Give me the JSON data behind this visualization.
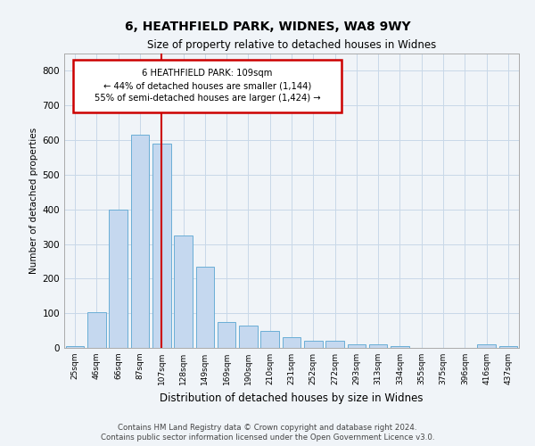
{
  "title1": "6, HEATHFIELD PARK, WIDNES, WA8 9WY",
  "title2": "Size of property relative to detached houses in Widnes",
  "xlabel": "Distribution of detached houses by size in Widnes",
  "ylabel": "Number of detached properties",
  "footnote1": "Contains HM Land Registry data © Crown copyright and database right 2024.",
  "footnote2": "Contains public sector information licensed under the Open Government Licence v3.0.",
  "annotation_line1": "6 HEATHFIELD PARK: 109sqm",
  "annotation_line2": "← 44% of detached houses are smaller (1,144)",
  "annotation_line3": "55% of semi-detached houses are larger (1,424) →",
  "bar_labels": [
    "25sqm",
    "46sqm",
    "66sqm",
    "87sqm",
    "107sqm",
    "128sqm",
    "149sqm",
    "169sqm",
    "190sqm",
    "210sqm",
    "231sqm",
    "252sqm",
    "272sqm",
    "293sqm",
    "313sqm",
    "334sqm",
    "355sqm",
    "375sqm",
    "396sqm",
    "416sqm",
    "437sqm"
  ],
  "bar_heights": [
    5,
    102,
    400,
    615,
    590,
    325,
    235,
    75,
    65,
    50,
    30,
    20,
    20,
    10,
    10,
    5,
    0,
    0,
    0,
    10,
    5
  ],
  "bar_color": "#c5d8ef",
  "bar_edge_color": "#6aaed6",
  "red_line_color": "#cc0000",
  "grid_color": "#c8d8e8",
  "background_color": "#f0f4f8",
  "ylim": [
    0,
    850
  ],
  "yticks": [
    0,
    100,
    200,
    300,
    400,
    500,
    600,
    700,
    800
  ],
  "red_line_index": 4
}
